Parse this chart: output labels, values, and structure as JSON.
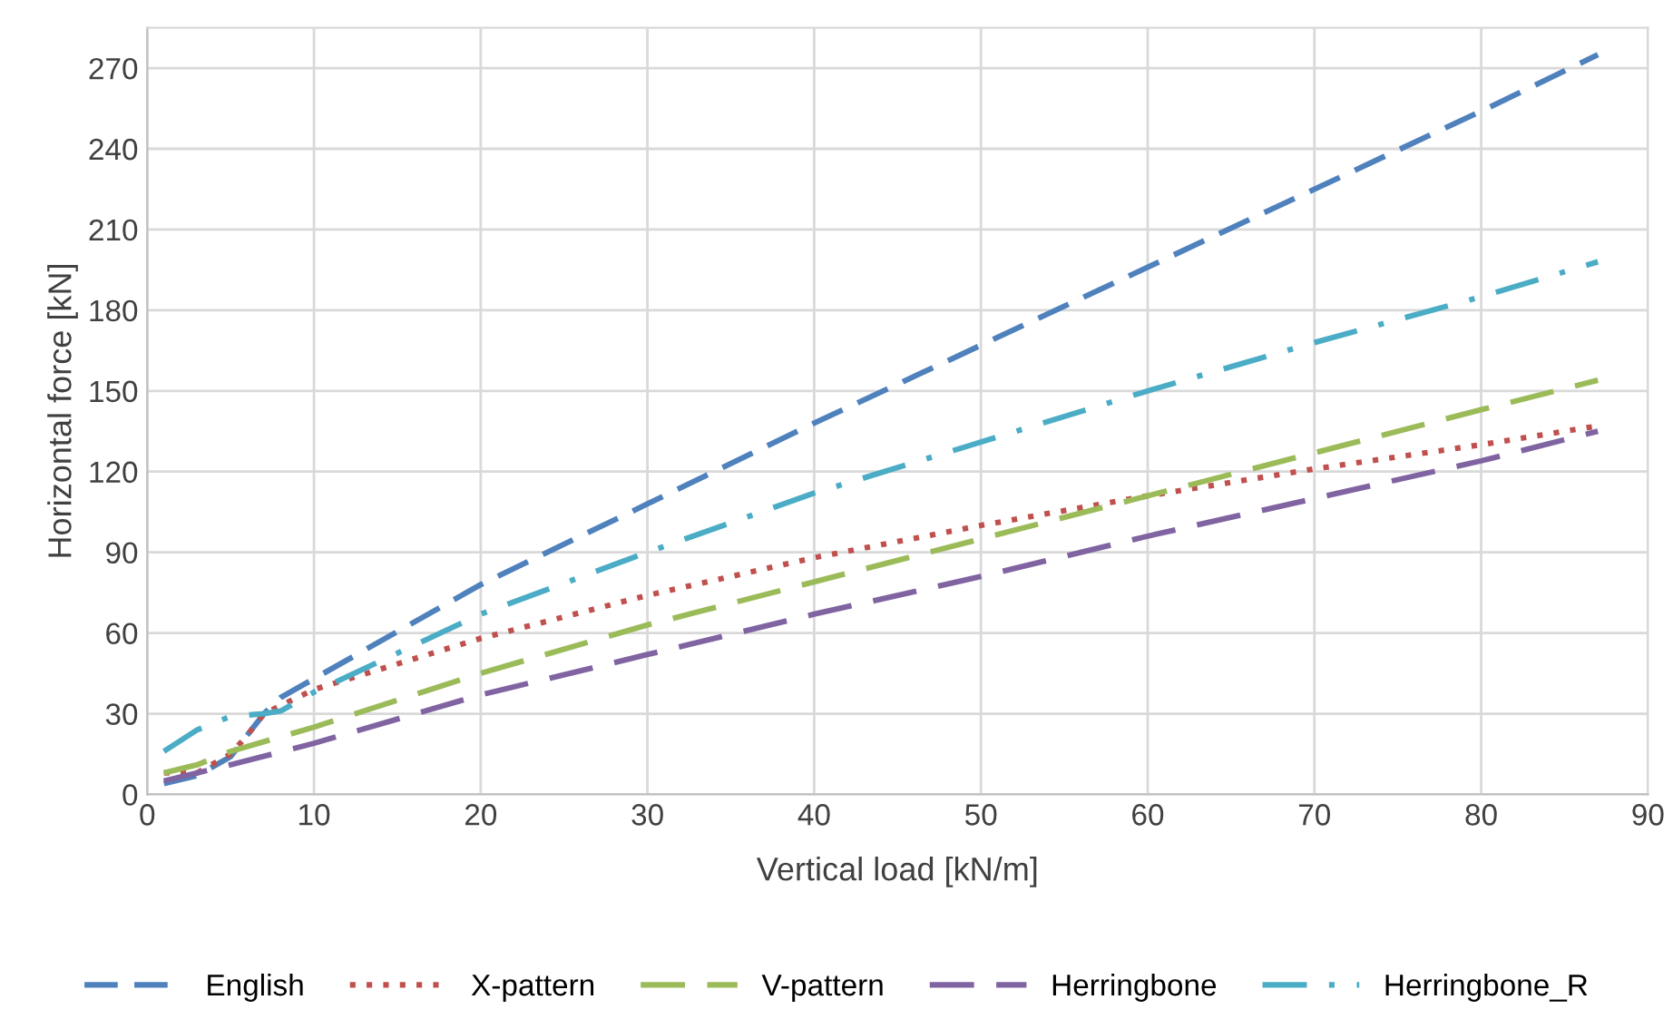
{
  "chart_data": {
    "type": "line",
    "xlabel": "Vertical load [kN/m]",
    "ylabel": "Horizontal force [kN]",
    "xlim": [
      0,
      90
    ],
    "xticks": [
      0,
      10,
      20,
      30,
      40,
      50,
      60,
      70,
      80,
      90
    ],
    "ylim": [
      0,
      285
    ],
    "yticks": [
      0,
      30,
      60,
      90,
      120,
      150,
      180,
      210,
      240,
      270
    ],
    "grid": true,
    "legend": "bottom",
    "marker": "none",
    "series": [
      {
        "name": "English",
        "color": "#4f81bd",
        "line_style": "dashed",
        "x": [
          1,
          3,
          5,
          6,
          7,
          8,
          10,
          20,
          30,
          40,
          50,
          60,
          70,
          80,
          87
        ],
        "values": [
          4,
          7,
          14,
          22,
          30,
          36,
          43,
          78,
          108,
          138,
          167,
          196,
          225,
          254,
          275
        ]
      },
      {
        "name": "X-pattern",
        "color": "#c0504d",
        "line_style": "dotted",
        "x": [
          1,
          3,
          5,
          6,
          7,
          8,
          10,
          20,
          30,
          40,
          50,
          60,
          70,
          80,
          87
        ],
        "values": [
          8,
          8,
          15,
          22,
          30,
          33,
          39,
          58,
          74,
          88,
          100,
          111,
          121,
          130,
          137
        ]
      },
      {
        "name": "V-pattern",
        "color": "#9bbb59",
        "line_style": "dashed",
        "x": [
          1,
          3,
          5,
          10,
          20,
          30,
          40,
          50,
          60,
          70,
          80,
          87
        ],
        "values": [
          8,
          11,
          16,
          25,
          45,
          63,
          79,
          95,
          111,
          127,
          143,
          154
        ]
      },
      {
        "name": "Herringbone",
        "color": "#8064a2",
        "line_style": "dashed",
        "x": [
          1,
          3,
          5,
          10,
          20,
          30,
          40,
          50,
          60,
          70,
          80,
          87
        ],
        "values": [
          5,
          8,
          11,
          19,
          37,
          52,
          67,
          81,
          96,
          110,
          124,
          135
        ]
      },
      {
        "name": "Herringbone_R",
        "color": "#4bacc6",
        "line_style": "dashdot",
        "x": [
          1,
          3,
          5,
          7,
          8,
          10,
          20,
          30,
          40,
          50,
          60,
          70,
          80,
          87
        ],
        "values": [
          16,
          24,
          29,
          30,
          31,
          38,
          67,
          90,
          112,
          131,
          150,
          168,
          185,
          198
        ]
      }
    ]
  }
}
